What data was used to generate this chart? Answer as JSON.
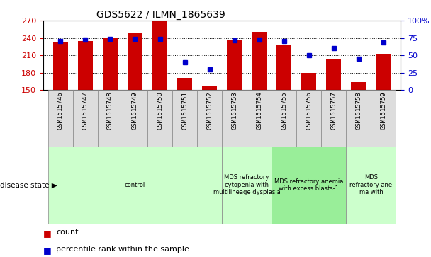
{
  "title": "GDS5622 / ILMN_1865639",
  "samples": [
    "GSM1515746",
    "GSM1515747",
    "GSM1515748",
    "GSM1515749",
    "GSM1515750",
    "GSM1515751",
    "GSM1515752",
    "GSM1515753",
    "GSM1515754",
    "GSM1515755",
    "GSM1515756",
    "GSM1515757",
    "GSM1515758",
    "GSM1515759"
  ],
  "count_values": [
    233,
    235,
    240,
    249,
    270,
    171,
    158,
    237,
    251,
    228,
    179,
    203,
    163,
    212
  ],
  "percentile_values": [
    70,
    72,
    74,
    74,
    74,
    40,
    30,
    71,
    73,
    70,
    50,
    60,
    45,
    68
  ],
  "ylim_left": [
    150,
    270
  ],
  "ylim_right": [
    0,
    100
  ],
  "bar_color": "#CC0000",
  "dot_color": "#0000CC",
  "bg_color": "#FFFFFF",
  "left_yticks": [
    150,
    180,
    210,
    240,
    270
  ],
  "right_yticks": [
    0,
    25,
    50,
    75,
    100
  ],
  "right_yticklabels": [
    "0",
    "25",
    "50",
    "75",
    "100%"
  ],
  "group_configs": [
    {
      "start": 0,
      "end": 7,
      "color": "#CCFFCC",
      "label": "control"
    },
    {
      "start": 7,
      "end": 9,
      "color": "#CCFFCC",
      "label": "MDS refractory\ncytopenia with\nmultilineage dysplasia"
    },
    {
      "start": 9,
      "end": 12,
      "color": "#99EE99",
      "label": "MDS refractory anemia\nwith excess blasts-1"
    },
    {
      "start": 12,
      "end": 14,
      "color": "#CCFFCC",
      "label": "MDS\nrefractory ane\nma with"
    }
  ],
  "disease_state_label": "disease state",
  "legend_items": [
    {
      "color": "#CC0000",
      "label": "count"
    },
    {
      "color": "#0000CC",
      "label": "percentile rank within the sample"
    }
  ]
}
